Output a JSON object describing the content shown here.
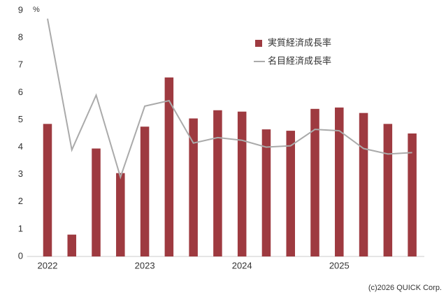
{
  "chart_data": {
    "type": "bar",
    "unit": "%",
    "source": "(c)2026 QUICK Corp.",
    "categories": [
      "2022",
      null,
      null,
      null,
      "2023",
      null,
      null,
      null,
      "2024",
      null,
      null,
      null,
      "2025",
      null,
      null,
      null
    ],
    "series": [
      {
        "name": "実質経済成長率",
        "type": "bar",
        "color": "#9e3a40",
        "values": [
          4.85,
          0.8,
          3.95,
          3.05,
          4.75,
          6.55,
          5.05,
          5.35,
          5.3,
          4.65,
          4.6,
          5.4,
          5.45,
          5.25,
          4.85,
          4.5
        ]
      },
      {
        "name": "名目経済成長率",
        "type": "line",
        "color": "#aaaaaa",
        "values": [
          8.7,
          3.9,
          5.9,
          2.9,
          5.5,
          5.7,
          4.15,
          4.35,
          4.25,
          4.0,
          4.05,
          4.65,
          4.6,
          3.95,
          3.75,
          3.8
        ]
      }
    ],
    "ylim": [
      0,
      9
    ],
    "yticks": [
      0,
      1,
      2,
      3,
      4,
      5,
      6,
      7,
      8,
      9
    ],
    "grid": false,
    "legend": "top"
  }
}
